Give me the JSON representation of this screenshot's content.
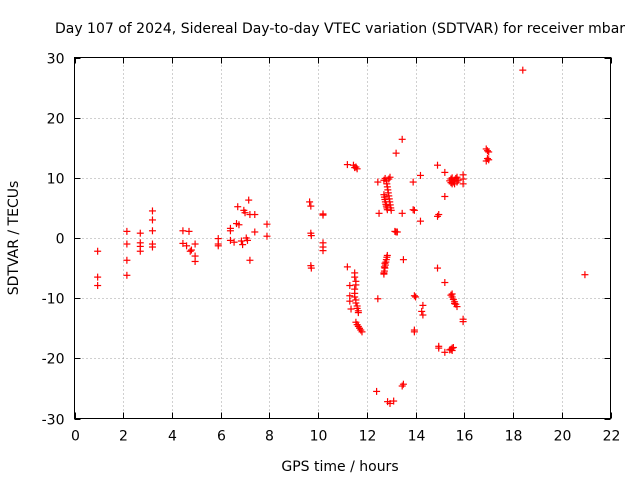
{
  "chart_data": {
    "type": "scatter",
    "title": "Day 107 of 2024, Sidereal Day-to-day VTEC variation (SDTVAR) for receiver mbar",
    "xlabel": "GPS time / hours",
    "ylabel": "SDTVAR / TECUs",
    "xlim": [
      0,
      22
    ],
    "ylim": [
      -30,
      30
    ],
    "xticks": [
      0,
      2,
      4,
      6,
      8,
      10,
      12,
      14,
      16,
      18,
      20,
      22
    ],
    "yticks": [
      -30,
      -20,
      -10,
      0,
      10,
      20,
      30
    ],
    "grid": true,
    "marker": "+",
    "color": "#ff0000",
    "series": [
      {
        "name": "SDTVAR",
        "points": [
          [
            0.95,
            -2.2
          ],
          [
            0.95,
            -6.5
          ],
          [
            0.95,
            -7.9
          ],
          [
            2.15,
            1.1
          ],
          [
            2.15,
            -1.0
          ],
          [
            2.15,
            -3.7
          ],
          [
            2.15,
            -6.2
          ],
          [
            2.7,
            0.8
          ],
          [
            2.7,
            -0.8
          ],
          [
            2.7,
            -1.4
          ],
          [
            2.7,
            -2.2
          ],
          [
            3.2,
            4.5
          ],
          [
            3.2,
            3.0
          ],
          [
            3.2,
            1.2
          ],
          [
            3.2,
            -1.0
          ],
          [
            3.2,
            -1.5
          ],
          [
            4.45,
            1.2
          ],
          [
            4.45,
            -0.9
          ],
          [
            4.6,
            -1.3
          ],
          [
            4.7,
            1.1
          ],
          [
            4.75,
            -2.2
          ],
          [
            4.8,
            -2.0
          ],
          [
            4.95,
            -1.0
          ],
          [
            4.95,
            -3.0
          ],
          [
            4.95,
            -3.9
          ],
          [
            5.9,
            -0.1
          ],
          [
            5.9,
            -1.0
          ],
          [
            5.9,
            -1.3
          ],
          [
            6.4,
            1.6
          ],
          [
            6.4,
            1.2
          ],
          [
            6.4,
            -0.4
          ],
          [
            6.55,
            -0.7
          ],
          [
            6.65,
            2.4
          ],
          [
            6.7,
            5.2
          ],
          [
            6.75,
            2.2
          ],
          [
            6.85,
            -0.5
          ],
          [
            6.9,
            -1.1
          ],
          [
            6.95,
            4.6
          ],
          [
            7.0,
            4.2
          ],
          [
            7.05,
            0.0
          ],
          [
            7.1,
            -0.4
          ],
          [
            7.15,
            6.3
          ],
          [
            7.2,
            3.9
          ],
          [
            7.2,
            -3.7
          ],
          [
            7.4,
            3.9
          ],
          [
            7.4,
            1.0
          ],
          [
            7.9,
            2.3
          ],
          [
            7.9,
            0.3
          ],
          [
            9.65,
            6.0
          ],
          [
            9.7,
            5.3
          ],
          [
            9.7,
            0.8
          ],
          [
            9.72,
            0.4
          ],
          [
            9.7,
            -4.6
          ],
          [
            9.72,
            -5.0
          ],
          [
            10.2,
            4.0
          ],
          [
            10.2,
            3.8
          ],
          [
            10.2,
            -0.8
          ],
          [
            10.2,
            -1.5
          ],
          [
            10.2,
            -2.1
          ],
          [
            11.2,
            12.2
          ],
          [
            11.2,
            -4.8
          ],
          [
            11.3,
            -7.9
          ],
          [
            11.3,
            -9.6
          ],
          [
            11.3,
            -10.5
          ],
          [
            11.35,
            -11.8
          ],
          [
            11.45,
            12.1
          ],
          [
            11.5,
            11.7
          ],
          [
            11.55,
            11.8
          ],
          [
            11.6,
            11.5
          ],
          [
            11.5,
            -5.8
          ],
          [
            11.5,
            -6.5
          ],
          [
            11.55,
            -7.2
          ],
          [
            11.55,
            -7.8
          ],
          [
            11.5,
            -8.5
          ],
          [
            11.5,
            -9.2
          ],
          [
            11.5,
            -9.8
          ],
          [
            11.55,
            -10.3
          ],
          [
            11.55,
            -10.8
          ],
          [
            11.6,
            -11.3
          ],
          [
            11.6,
            -11.7
          ],
          [
            11.65,
            -12.1
          ],
          [
            11.65,
            -12.4
          ],
          [
            11.55,
            -14.0
          ],
          [
            11.6,
            -14.4
          ],
          [
            11.65,
            -14.7
          ],
          [
            11.7,
            -15.0
          ],
          [
            11.75,
            -15.3
          ],
          [
            11.8,
            -15.6
          ],
          [
            12.4,
            -25.5
          ],
          [
            12.45,
            -10.1
          ],
          [
            12.45,
            9.3
          ],
          [
            12.5,
            4.1
          ],
          [
            12.7,
            9.6
          ],
          [
            12.7,
            7.2
          ],
          [
            12.72,
            6.8
          ],
          [
            12.74,
            6.4
          ],
          [
            12.76,
            6.0
          ],
          [
            12.78,
            5.6
          ],
          [
            12.8,
            5.3
          ],
          [
            12.82,
            5.0
          ],
          [
            12.84,
            4.7
          ],
          [
            12.75,
            9.9
          ],
          [
            12.8,
            9.5
          ],
          [
            12.82,
            9.0
          ],
          [
            12.84,
            8.5
          ],
          [
            12.86,
            8.0
          ],
          [
            12.88,
            7.5
          ],
          [
            12.9,
            7.0
          ],
          [
            12.92,
            6.5
          ],
          [
            12.94,
            6.0
          ],
          [
            12.96,
            5.5
          ],
          [
            12.98,
            5.0
          ],
          [
            13.0,
            4.6
          ],
          [
            12.95,
            10.1
          ],
          [
            12.9,
            9.8
          ],
          [
            12.7,
            -6.0
          ],
          [
            12.72,
            -5.5
          ],
          [
            12.74,
            -5.0
          ],
          [
            12.76,
            -4.5
          ],
          [
            12.78,
            -4.0
          ],
          [
            12.8,
            -3.6
          ],
          [
            12.82,
            -3.2
          ],
          [
            12.84,
            -2.9
          ],
          [
            12.7,
            -5.8
          ],
          [
            12.72,
            -4.8
          ],
          [
            12.74,
            -4.2
          ],
          [
            12.85,
            -27.2
          ],
          [
            12.95,
            -27.5
          ],
          [
            13.1,
            -27.1
          ],
          [
            13.15,
            1.1
          ],
          [
            13.2,
            1.0
          ],
          [
            13.25,
            1.0
          ],
          [
            13.2,
            14.1
          ],
          [
            13.45,
            16.4
          ],
          [
            13.45,
            4.1
          ],
          [
            13.5,
            -3.6
          ],
          [
            13.5,
            -24.3
          ],
          [
            13.45,
            -24.6
          ],
          [
            13.9,
            4.7
          ],
          [
            13.9,
            9.3
          ],
          [
            13.95,
            4.6
          ],
          [
            13.95,
            -9.6
          ],
          [
            14.0,
            -9.8
          ],
          [
            13.95,
            -15.3
          ],
          [
            13.95,
            -15.6
          ],
          [
            14.2,
            10.4
          ],
          [
            14.2,
            2.8
          ],
          [
            14.3,
            -11.2
          ],
          [
            14.25,
            -12.2
          ],
          [
            14.3,
            -12.8
          ],
          [
            14.9,
            12.1
          ],
          [
            14.9,
            3.6
          ],
          [
            14.95,
            3.9
          ],
          [
            14.9,
            -5.0
          ],
          [
            14.95,
            -18.0
          ],
          [
            14.95,
            -18.3
          ],
          [
            15.2,
            -7.4
          ],
          [
            15.2,
            -19.0
          ],
          [
            15.2,
            10.9
          ],
          [
            15.2,
            6.9
          ],
          [
            15.4,
            -18.6
          ],
          [
            15.45,
            -18.5
          ],
          [
            15.5,
            -18.3
          ],
          [
            15.5,
            -18.7
          ],
          [
            15.55,
            -18.2
          ],
          [
            15.45,
            -9.5
          ],
          [
            15.5,
            -9.8
          ],
          [
            15.55,
            -10.2
          ],
          [
            15.6,
            -10.6
          ],
          [
            15.65,
            -11.0
          ],
          [
            15.7,
            -11.4
          ],
          [
            15.5,
            -9.3
          ],
          [
            15.6,
            -10.9
          ],
          [
            15.4,
            9.5
          ],
          [
            15.45,
            9.2
          ],
          [
            15.5,
            9.0
          ],
          [
            15.55,
            9.3
          ],
          [
            15.6,
            9.6
          ],
          [
            15.65,
            9.9
          ],
          [
            15.7,
            10.1
          ],
          [
            15.5,
            10.0
          ],
          [
            15.45,
            9.8
          ],
          [
            15.6,
            9.0
          ],
          [
            15.7,
            9.3
          ],
          [
            15.75,
            9.6
          ],
          [
            15.95,
            10.5
          ],
          [
            15.95,
            9.8
          ],
          [
            15.95,
            9.0
          ],
          [
            15.95,
            -13.5
          ],
          [
            15.95,
            -13.9
          ],
          [
            16.9,
            14.8
          ],
          [
            16.95,
            14.5
          ],
          [
            17.0,
            14.3
          ],
          [
            16.95,
            13.2
          ],
          [
            16.9,
            12.8
          ],
          [
            17.0,
            13.0
          ],
          [
            18.4,
            27.9
          ],
          [
            20.95,
            -6.1
          ]
        ]
      }
    ]
  }
}
